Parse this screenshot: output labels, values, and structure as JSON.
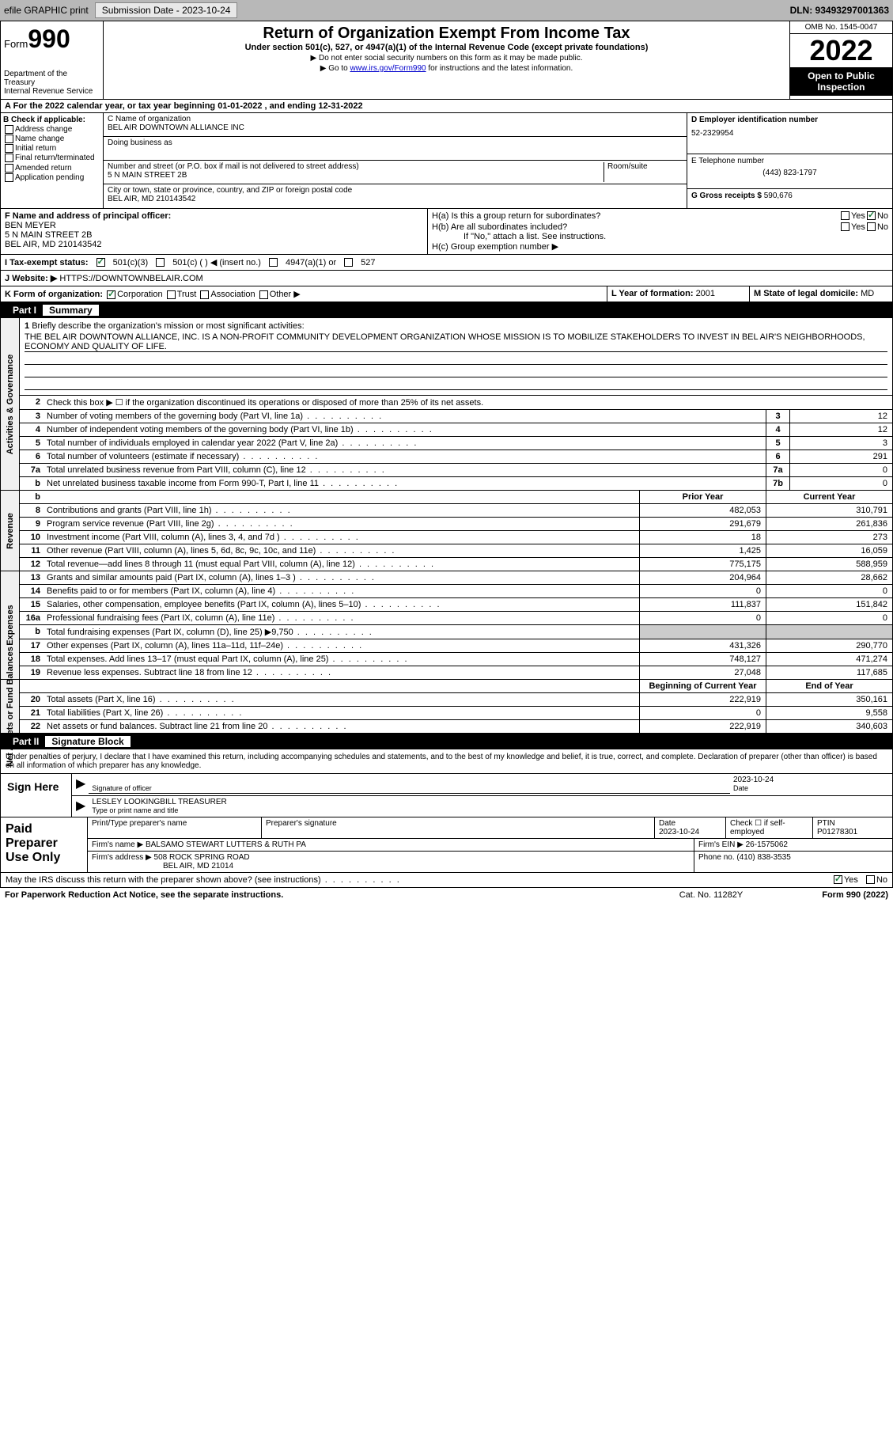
{
  "toolbar": {
    "efile_label": "efile GRAPHIC print",
    "submission_label": "Submission Date - 2023-10-24",
    "dln": "DLN: 93493297001363"
  },
  "header": {
    "form_label": "Form",
    "form_num": "990",
    "dept": "Department of the Treasury",
    "irs": "Internal Revenue Service",
    "title": "Return of Organization Exempt From Income Tax",
    "subtitle": "Under section 501(c), 527, or 4947(a)(1) of the Internal Revenue Code (except private foundations)",
    "note1": "▶ Do not enter social security numbers on this form as it may be made public.",
    "note2_pre": "▶ Go to ",
    "note2_link": "www.irs.gov/Form990",
    "note2_post": " for instructions and the latest information.",
    "omb": "OMB No. 1545-0047",
    "year": "2022",
    "inspection": "Open to Public Inspection"
  },
  "row_a": "A For the 2022 calendar year, or tax year beginning 01-01-2022    , and ending 12-31-2022",
  "col_b": {
    "title": "B Check if applicable:",
    "opts": [
      "Address change",
      "Name change",
      "Initial return",
      "Final return/terminated",
      "Amended return",
      "Application pending"
    ]
  },
  "col_c": {
    "name_label": "C Name of organization",
    "name": "BEL AIR DOWNTOWN ALLIANCE INC",
    "dba_label": "Doing business as",
    "dba": "",
    "addr_label": "Number and street (or P.O. box if mail is not delivered to street address)",
    "room_label": "Room/suite",
    "addr": "5 N MAIN STREET 2B",
    "city_label": "City or town, state or province, country, and ZIP or foreign postal code",
    "city": "BEL AIR, MD  210143542"
  },
  "col_de": {
    "d_label": "D Employer identification number",
    "ein": "52-2329954",
    "e_label": "E Telephone number",
    "phone": "(443) 823-1797",
    "g_label": "G Gross receipts $ ",
    "gross": "590,676"
  },
  "fgh": {
    "f_label": "F  Name and address of principal officer:",
    "officer_name": "BEN MEYER",
    "officer_addr1": "5 N MAIN STREET 2B",
    "officer_addr2": "BEL AIR, MD  210143542",
    "ha": "H(a)  Is this a group return for subordinates?",
    "hb": "H(b)  Are all subordinates included?",
    "hb_note": "If \"No,\" attach a list. See instructions.",
    "hc": "H(c)  Group exemption number ▶",
    "yes": "Yes",
    "no": "No"
  },
  "tax_status": {
    "label": "I  Tax-exempt status:",
    "o1": "501(c)(3)",
    "o2": "501(c) (  ) ◀ (insert no.)",
    "o3": "4947(a)(1) or",
    "o4": "527"
  },
  "website": {
    "label": "J  Website: ▶ ",
    "url": "HTTPS://DOWNTOWNBELAIR.COM"
  },
  "klm": {
    "k": "K Form of organization:",
    "k1": "Corporation",
    "k2": "Trust",
    "k3": "Association",
    "k4": "Other ▶",
    "l": "L Year of formation: ",
    "l_val": "2001",
    "m": "M State of legal domicile: ",
    "m_val": "MD"
  },
  "part1": {
    "num": "Part I",
    "title": "Summary"
  },
  "mission": {
    "num": "1",
    "label": "Briefly describe the organization's mission or most significant activities:",
    "text": "THE BEL AIR DOWNTOWN ALLIANCE, INC. IS A NON-PROFIT COMMUNITY DEVELOPMENT ORGANIZATION WHOSE MISSION IS TO MOBILIZE STAKEHOLDERS TO INVEST IN BEL AIR'S NEIGHBORHOODS, ECONOMY AND QUALITY OF LIFE."
  },
  "line2": "Check this box ▶ ☐  if the organization discontinued its operations or disposed of more than 25% of its net assets.",
  "summary_lines": [
    {
      "n": "3",
      "label": "Number of voting members of the governing body (Part VI, line 1a)",
      "box": "3",
      "val": "12"
    },
    {
      "n": "4",
      "label": "Number of independent voting members of the governing body (Part VI, line 1b)",
      "box": "4",
      "val": "12"
    },
    {
      "n": "5",
      "label": "Total number of individuals employed in calendar year 2022 (Part V, line 2a)",
      "box": "5",
      "val": "3"
    },
    {
      "n": "6",
      "label": "Total number of volunteers (estimate if necessary)",
      "box": "6",
      "val": "291"
    },
    {
      "n": "7a",
      "label": "Total unrelated business revenue from Part VIII, column (C), line 12",
      "box": "7a",
      "val": "0"
    },
    {
      "n": "b",
      "label": "Net unrelated business taxable income from Form 990-T, Part I, line 11",
      "box": "7b",
      "val": "0"
    }
  ],
  "col_headers": {
    "prior": "Prior Year",
    "current": "Current Year"
  },
  "revenue_lines": [
    {
      "n": "8",
      "label": "Contributions and grants (Part VIII, line 1h)",
      "p": "482,053",
      "c": "310,791"
    },
    {
      "n": "9",
      "label": "Program service revenue (Part VIII, line 2g)",
      "p": "291,679",
      "c": "261,836"
    },
    {
      "n": "10",
      "label": "Investment income (Part VIII, column (A), lines 3, 4, and 7d )",
      "p": "18",
      "c": "273"
    },
    {
      "n": "11",
      "label": "Other revenue (Part VIII, column (A), lines 5, 6d, 8c, 9c, 10c, and 11e)",
      "p": "1,425",
      "c": "16,059"
    },
    {
      "n": "12",
      "label": "Total revenue—add lines 8 through 11 (must equal Part VIII, column (A), line 12)",
      "p": "775,175",
      "c": "588,959"
    }
  ],
  "expense_lines": [
    {
      "n": "13",
      "label": "Grants and similar amounts paid (Part IX, column (A), lines 1–3 )",
      "p": "204,964",
      "c": "28,662"
    },
    {
      "n": "14",
      "label": "Benefits paid to or for members (Part IX, column (A), line 4)",
      "p": "0",
      "c": "0"
    },
    {
      "n": "15",
      "label": "Salaries, other compensation, employee benefits (Part IX, column (A), lines 5–10)",
      "p": "111,837",
      "c": "151,842"
    },
    {
      "n": "16a",
      "label": "Professional fundraising fees (Part IX, column (A), line 11e)",
      "p": "0",
      "c": "0"
    },
    {
      "n": "b",
      "label": "Total fundraising expenses (Part IX, column (D), line 25) ▶9,750",
      "p": "",
      "c": "",
      "grey": true
    },
    {
      "n": "17",
      "label": "Other expenses (Part IX, column (A), lines 11a–11d, 11f–24e)",
      "p": "431,326",
      "c": "290,770"
    },
    {
      "n": "18",
      "label": "Total expenses. Add lines 13–17 (must equal Part IX, column (A), line 25)",
      "p": "748,127",
      "c": "471,274"
    },
    {
      "n": "19",
      "label": "Revenue less expenses. Subtract line 18 from line 12",
      "p": "27,048",
      "c": "117,685"
    }
  ],
  "net_headers": {
    "begin": "Beginning of Current Year",
    "end": "End of Year"
  },
  "net_lines": [
    {
      "n": "20",
      "label": "Total assets (Part X, line 16)",
      "p": "222,919",
      "c": "350,161"
    },
    {
      "n": "21",
      "label": "Total liabilities (Part X, line 26)",
      "p": "0",
      "c": "9,558"
    },
    {
      "n": "22",
      "label": "Net assets or fund balances. Subtract line 21 from line 20",
      "p": "222,919",
      "c": "340,603"
    }
  ],
  "vtabs": {
    "ag": "Activities & Governance",
    "rev": "Revenue",
    "exp": "Expenses",
    "net": "Net Assets or Fund Balances"
  },
  "part2": {
    "num": "Part II",
    "title": "Signature Block"
  },
  "sig_intro": "Under penalties of perjury, I declare that I have examined this return, including accompanying schedules and statements, and to the best of my knowledge and belief, it is true, correct, and complete. Declaration of preparer (other than officer) is based on all information of which preparer has any knowledge.",
  "sign": {
    "here": "Sign Here",
    "sig_label": "Signature of officer",
    "date_label": "Date",
    "date": "2023-10-24",
    "name": "LESLEY LOOKINGBILL  TREASURER",
    "name_label": "Type or print name and title"
  },
  "prep": {
    "title": "Paid Preparer Use Only",
    "h_name": "Print/Type preparer's name",
    "h_sig": "Preparer's signature",
    "h_date": "Date",
    "date": "2023-10-24",
    "h_self": "Check ☐ if self-employed",
    "h_ptin": "PTIN",
    "ptin": "P01278301",
    "firm_name_label": "Firm's name    ▶ ",
    "firm_name": "BALSAMO STEWART LUTTERS & RUTH PA",
    "firm_ein_label": "Firm's EIN ▶ ",
    "firm_ein": "26-1575062",
    "firm_addr_label": "Firm's address ▶ ",
    "firm_addr1": "508 ROCK SPRING ROAD",
    "firm_addr2": "BEL AIR, MD  21014",
    "phone_label": "Phone no. ",
    "phone": "(410) 838-3535"
  },
  "discuss": {
    "q": "May the IRS discuss this return with the preparer shown above? (see instructions)",
    "yes": "Yes",
    "no": "No"
  },
  "footer": {
    "pra": "For Paperwork Reduction Act Notice, see the separate instructions.",
    "cat": "Cat. No. 11282Y",
    "form": "Form 990 (2022)"
  }
}
